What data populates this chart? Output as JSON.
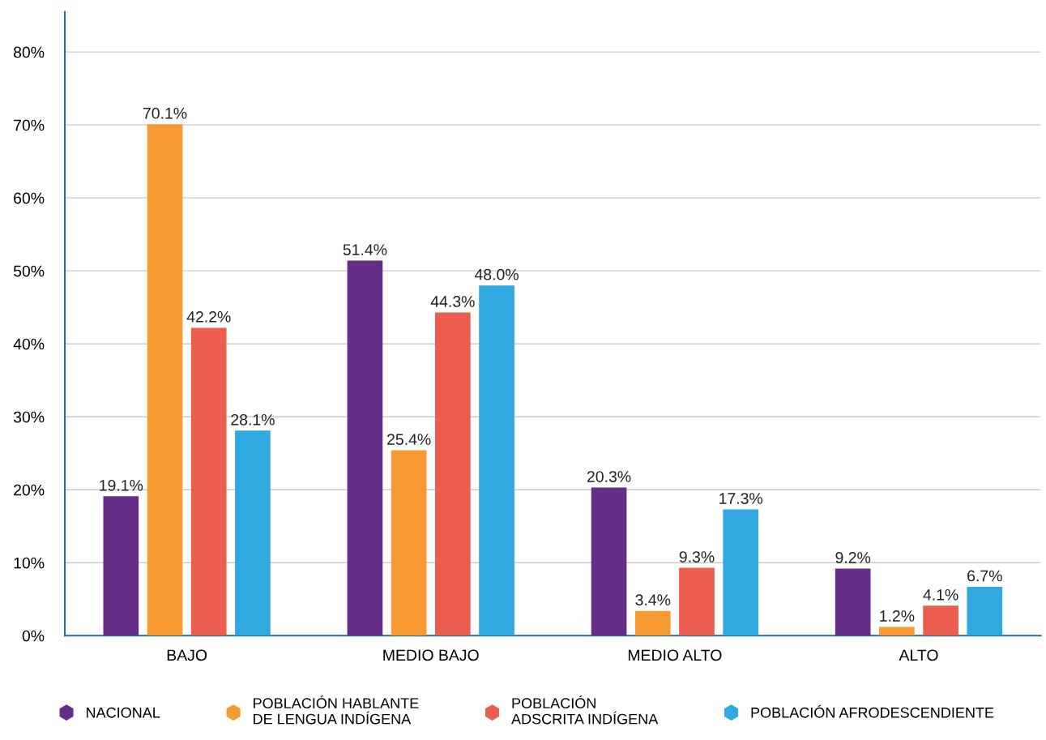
{
  "chart_data": {
    "type": "bar",
    "categories": [
      "BAJO",
      "MEDIO BAJO",
      "MEDIO ALTO",
      "ALTO"
    ],
    "series": [
      {
        "name": "NACIONAL",
        "color": "#662d86",
        "values": [
          19.1,
          51.4,
          20.3,
          9.2
        ],
        "value_labels": [
          "19.1%",
          "51.4%",
          "20.3%",
          "9.2%"
        ]
      },
      {
        "name": "POBLACIÓN HABLANTE\nDE LENGUA INDÍGENA",
        "color": "#f79a32",
        "values": [
          70.1,
          25.4,
          3.4,
          1.2
        ],
        "value_labels": [
          "70.1%",
          "25.4%",
          "3.4%",
          "1.2%"
        ]
      },
      {
        "name": "POBLACIÓN\nADSCRITA INDÍGENA",
        "color": "#eb5e4e",
        "values": [
          42.2,
          44.3,
          9.3,
          4.1
        ],
        "value_labels": [
          "42.2%",
          "44.3%",
          "9.3%",
          "4.1%"
        ]
      },
      {
        "name": "POBLACIÓN AFRODESCENDIENTE",
        "color": "#30a8e0",
        "values": [
          28.1,
          48.0,
          17.3,
          6.7
        ],
        "value_labels": [
          "28.1%",
          "48.0%",
          "17.3%",
          "6.7%"
        ]
      }
    ],
    "ylim": [
      0,
      85.5
    ],
    "yticks": [
      {
        "value": 0,
        "label": "0%"
      },
      {
        "value": 10,
        "label": "10%"
      },
      {
        "value": 20,
        "label": "20%"
      },
      {
        "value": 30,
        "label": "30%"
      },
      {
        "value": 40,
        "label": "40%"
      },
      {
        "value": 50,
        "label": "50%"
      },
      {
        "value": 60,
        "label": "60%"
      },
      {
        "value": 70,
        "label": "70%"
      },
      {
        "value": 80,
        "label": "80%"
      }
    ],
    "grid": "y",
    "legend": "bottom"
  }
}
